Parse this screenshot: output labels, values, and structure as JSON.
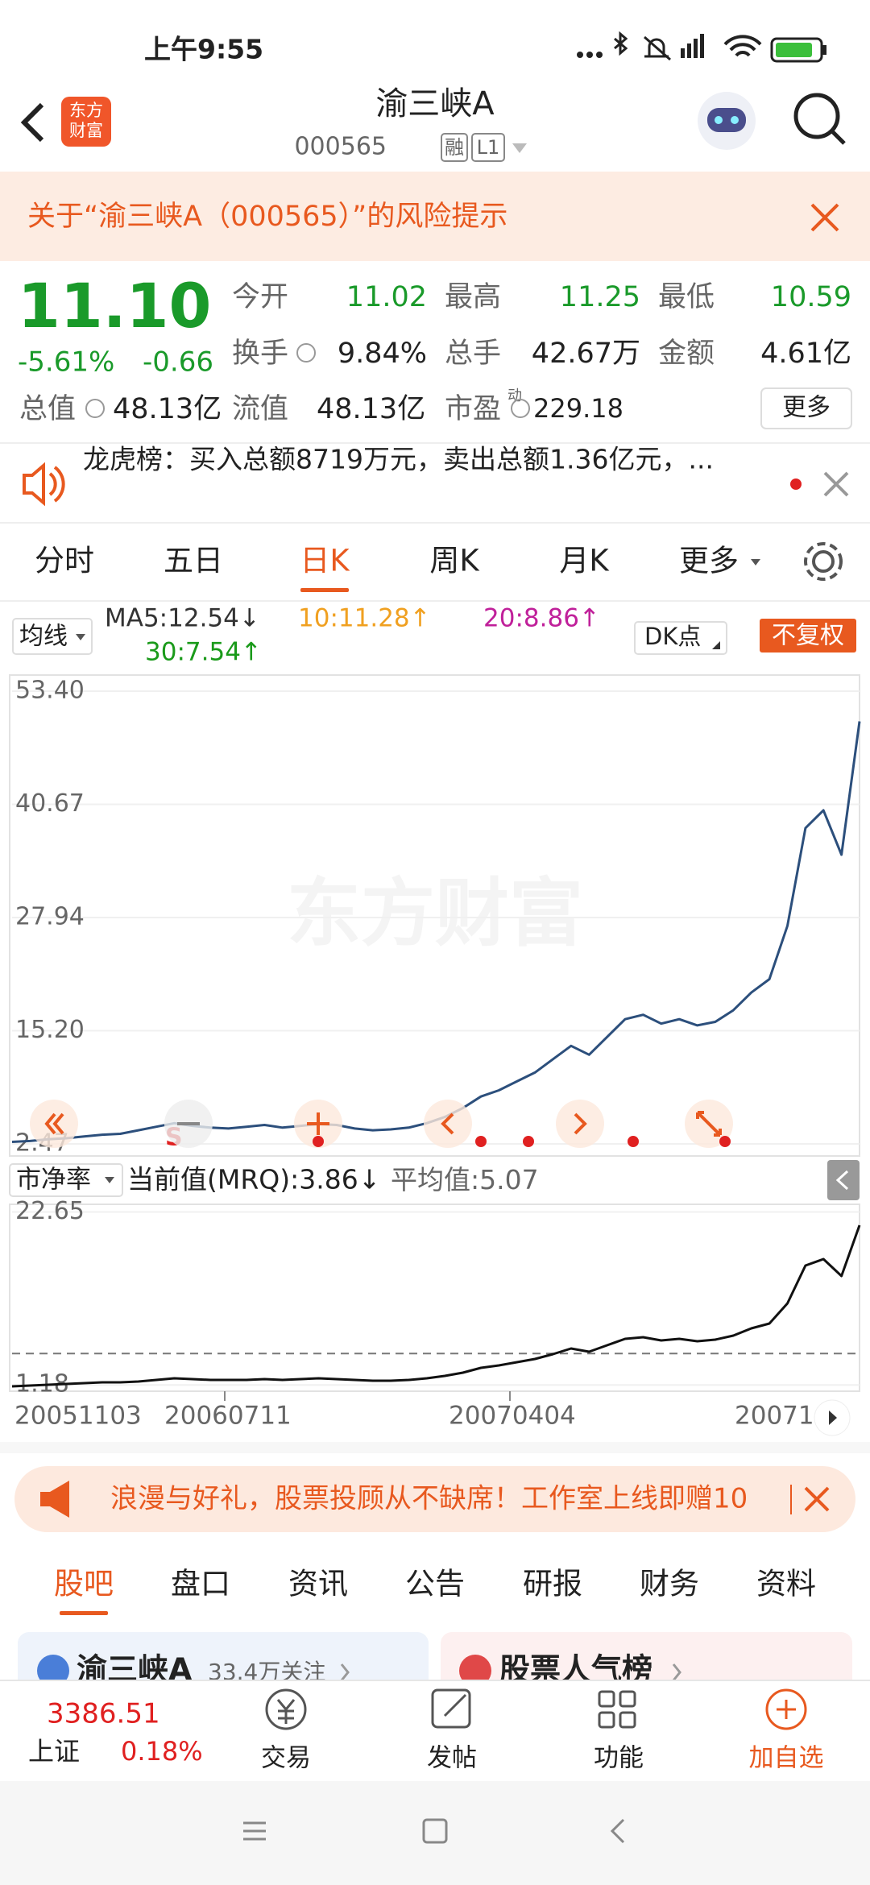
{
  "status_bar": {
    "time": "上午9:55"
  },
  "header": {
    "logo": [
      "东方",
      "财富"
    ],
    "title": "渝三峡A",
    "code": "000565",
    "tags": [
      "融",
      "L1"
    ]
  },
  "risk_banner": {
    "text": "关于“渝三峡A（000565）”的风险提示"
  },
  "quote": {
    "price": "11.10",
    "change_pct": "-5.61%",
    "change": "-0.66",
    "fields": [
      {
        "label": "今开",
        "value": "11.02"
      },
      {
        "label": "最高",
        "value": "11.25"
      },
      {
        "label": "最低",
        "value": "10.59"
      },
      {
        "label": "换手",
        "value": "9.84%"
      },
      {
        "label": "总手",
        "value": "42.67万"
      },
      {
        "label": "金额",
        "value": "4.61亿"
      },
      {
        "label": "总值",
        "value": "48.13亿"
      },
      {
        "label": "流值",
        "value": "48.13亿"
      },
      {
        "label": "市盈",
        "sup": "动",
        "value": "229.18"
      }
    ],
    "more": "更多"
  },
  "news": {
    "text": "龙虎榜：买入总额8719万元，卖出总额1.36亿元，..."
  },
  "period_tabs": [
    "分时",
    "五日",
    "日K",
    "周K",
    "月K",
    "更多"
  ],
  "ma": {
    "selector": "均线",
    "items": [
      {
        "text": "MA5:12.54↓",
        "color": "#333333"
      },
      {
        "text": "10:11.28↑",
        "color": "#f0a020"
      },
      {
        "text": "20:8.86↑",
        "color": "#c0209a"
      },
      {
        "text": "30:7.54↑",
        "color": "#1a9a1a"
      }
    ],
    "dk": "DK点",
    "adjust": "不复权"
  },
  "price_chart": {
    "type": "line",
    "watermark": "东方财富",
    "marker": "S",
    "color": "#2c4f7c",
    "ylim": [
      2.47,
      53.4
    ],
    "yticks": [
      2.47,
      {
        "value": 15.2,
        "label": "15.20"
      },
      27.94,
      40.67,
      {
        "value": 53.4,
        "label": "53.40"
      }
    ],
    "values": [
      2.7,
      2.8,
      3.0,
      3.1,
      3.3,
      3.5,
      3.6,
      4.0,
      4.4,
      4.8,
      4.5,
      4.3,
      4.2,
      4.4,
      4.6,
      4.3,
      4.5,
      4.7,
      4.6,
      4.2,
      4.0,
      4.1,
      4.3,
      4.8,
      5.5,
      6.5,
      7.8,
      8.5,
      9.5,
      10.5,
      12.0,
      13.5,
      12.5,
      14.5,
      16.5,
      17.0,
      16.0,
      16.5,
      15.8,
      16.2,
      17.5,
      19.5,
      21.0,
      27.0,
      38.0,
      40.0,
      35.0,
      50.0
    ]
  },
  "pb_chart": {
    "type": "line",
    "indicator": "市净率",
    "current": "当前值(MRQ):3.86↓",
    "avg_label": "平均值:",
    "avg": 5.07,
    "color": "#111111",
    "ylim": [
      0.6,
      23.4
    ],
    "yticks": [
      1.18,
      22.65
    ],
    "values": [
      1.0,
      1.1,
      1.2,
      1.3,
      1.4,
      1.5,
      1.5,
      1.6,
      1.8,
      2.0,
      1.9,
      1.8,
      1.8,
      1.8,
      1.9,
      1.8,
      1.9,
      2.0,
      1.9,
      1.8,
      1.7,
      1.7,
      1.8,
      2.0,
      2.3,
      2.7,
      3.3,
      3.6,
      4.0,
      4.4,
      5.0,
      5.7,
      5.3,
      6.1,
      6.9,
      7.1,
      6.7,
      6.9,
      6.6,
      6.8,
      7.3,
      8.2,
      8.8,
      11.3,
      16.0,
      16.8,
      14.7,
      21.0
    ],
    "dates": [
      "20051103",
      "20060711",
      "20070404",
      "20071"
    ]
  },
  "promo": {
    "text": "浪漫与好礼，股票投顾从不缺席！工作室上线即赠10"
  },
  "content_tabs": [
    "股吧",
    "盘口",
    "资讯",
    "公告",
    "研报",
    "财务",
    "资料"
  ],
  "cards": [
    {
      "title": "渝三峡A",
      "sub": "33.4万关注"
    },
    {
      "title": "股票人气榜"
    }
  ],
  "bottom_bar": {
    "index_value": "3386.51",
    "index_name": "上证",
    "index_change": "0.18%",
    "actions": [
      "交易",
      "发帖",
      "功能",
      "加自选"
    ]
  }
}
